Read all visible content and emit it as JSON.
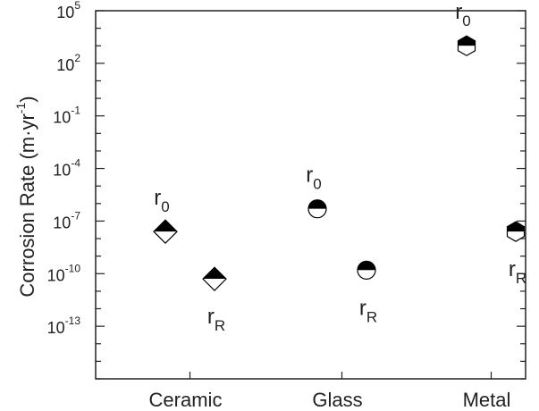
{
  "chart_data": {
    "type": "scatter",
    "title": "",
    "xlabel": "",
    "ylabel": {
      "prefix": "Corrosion Rate (m·yr",
      "superscript": "-1",
      "suffix": ")"
    },
    "y_scale": "log",
    "ylim_exp": [
      -16,
      5
    ],
    "y_ticks": [
      {
        "base": "10",
        "exp": "5"
      },
      {
        "base": "10",
        "exp": "2"
      },
      {
        "base": "10",
        "exp": "-1"
      },
      {
        "base": "10",
        "exp": "-4"
      },
      {
        "base": "10",
        "exp": "-7"
      },
      {
        "base": "10",
        "exp": "-10"
      },
      {
        "base": "10",
        "exp": "-13"
      }
    ],
    "categories": [
      "Ceramic",
      "Glass",
      "Metal"
    ],
    "points": [
      {
        "category": "Ceramic",
        "offset": 0,
        "log_value": -7.6,
        "marker": "diamond",
        "label_main": "r",
        "label_sub": "0",
        "label_pos": "above"
      },
      {
        "category": "Ceramic",
        "offset": 1,
        "log_value": -10.3,
        "marker": "diamond",
        "label_main": "r",
        "label_sub": "R",
        "label_pos": "below"
      },
      {
        "category": "Glass",
        "offset": 0,
        "log_value": -6.3,
        "marker": "circle",
        "label_main": "r",
        "label_sub": "0",
        "label_pos": "above"
      },
      {
        "category": "Glass",
        "offset": 1,
        "log_value": -9.8,
        "marker": "circle",
        "label_main": "r",
        "label_sub": "R",
        "label_pos": "below"
      },
      {
        "category": "Metal",
        "offset": 0,
        "log_value": 3.0,
        "marker": "hexagon",
        "label_main": "r",
        "label_sub": "0",
        "label_pos": "above"
      },
      {
        "category": "Metal",
        "offset": 1,
        "log_value": -7.6,
        "marker": "hexagon",
        "label_main": "r",
        "label_sub": "R",
        "label_pos": "below"
      }
    ],
    "grid": false,
    "legend": "none",
    "colors": {
      "marker_fill": "#000000",
      "marker_empty": "#ffffff",
      "axis": "#222222"
    }
  }
}
